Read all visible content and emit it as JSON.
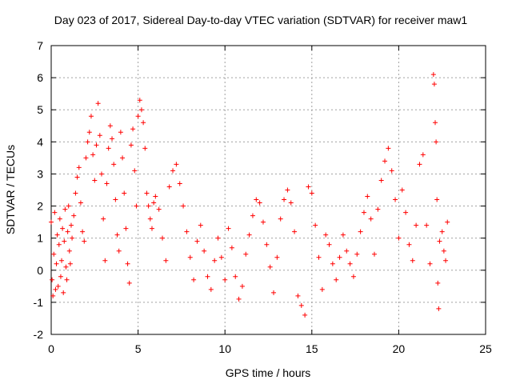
{
  "chart_data": {
    "type": "scatter",
    "title": "Day 023 of 2017, Sidereal Day-to-day VTEC variation (SDTVAR) for receiver maw1",
    "xlabel": "GPS time / hours",
    "ylabel": "SDTVAR / TECUs",
    "xlim": [
      0,
      25
    ],
    "ylim": [
      -2,
      7
    ],
    "xticks": [
      0,
      5,
      10,
      15,
      20,
      25
    ],
    "yticks": [
      -2,
      -1,
      0,
      1,
      2,
      3,
      4,
      5,
      6,
      7
    ],
    "grid": true,
    "marker": "+",
    "marker_color": "#ff0000",
    "series": [
      {
        "name": "SDTVAR",
        "points": [
          [
            0.0,
            1.5
          ],
          [
            0.05,
            -0.3
          ],
          [
            0.1,
            -0.8
          ],
          [
            0.15,
            0.5
          ],
          [
            0.2,
            1.8
          ],
          [
            0.25,
            -0.6
          ],
          [
            0.3,
            0.2
          ],
          [
            0.35,
            1.1
          ],
          [
            0.4,
            -0.5
          ],
          [
            0.45,
            0.8
          ],
          [
            0.5,
            1.6
          ],
          [
            0.55,
            -0.2
          ],
          [
            0.6,
            0.3
          ],
          [
            0.65,
            1.3
          ],
          [
            0.7,
            -0.7
          ],
          [
            0.75,
            0.9
          ],
          [
            0.8,
            1.9
          ],
          [
            0.85,
            0.1
          ],
          [
            0.9,
            -0.3
          ],
          [
            0.95,
            1.2
          ],
          [
            1.0,
            2.0
          ],
          [
            1.05,
            0.6
          ],
          [
            1.1,
            0.2
          ],
          [
            1.15,
            1.4
          ],
          [
            1.2,
            1.0
          ],
          [
            1.3,
            1.7
          ],
          [
            1.4,
            2.4
          ],
          [
            1.5,
            2.9
          ],
          [
            1.6,
            3.2
          ],
          [
            1.7,
            2.1
          ],
          [
            1.8,
            1.2
          ],
          [
            1.9,
            0.9
          ],
          [
            2.0,
            3.5
          ],
          [
            2.1,
            4.0
          ],
          [
            2.2,
            4.3
          ],
          [
            2.3,
            4.8
          ],
          [
            2.4,
            3.6
          ],
          [
            2.5,
            2.8
          ],
          [
            2.6,
            3.9
          ],
          [
            2.7,
            5.2
          ],
          [
            2.8,
            4.2
          ],
          [
            2.9,
            3.0
          ],
          [
            3.0,
            1.6
          ],
          [
            3.1,
            0.3
          ],
          [
            3.2,
            2.7
          ],
          [
            3.3,
            3.8
          ],
          [
            3.4,
            4.5
          ],
          [
            3.5,
            4.1
          ],
          [
            3.6,
            3.3
          ],
          [
            3.7,
            2.2
          ],
          [
            3.8,
            1.1
          ],
          [
            3.9,
            0.6
          ],
          [
            4.0,
            4.3
          ],
          [
            4.1,
            3.5
          ],
          [
            4.2,
            2.4
          ],
          [
            4.3,
            1.3
          ],
          [
            4.4,
            0.2
          ],
          [
            4.5,
            -0.4
          ],
          [
            4.6,
            3.9
          ],
          [
            4.7,
            4.4
          ],
          [
            4.8,
            3.1
          ],
          [
            4.9,
            2.0
          ],
          [
            5.0,
            4.8
          ],
          [
            5.1,
            5.3
          ],
          [
            5.2,
            5.0
          ],
          [
            5.3,
            4.6
          ],
          [
            5.4,
            3.8
          ],
          [
            5.5,
            2.4
          ],
          [
            5.6,
            2.0
          ],
          [
            5.7,
            1.6
          ],
          [
            5.8,
            1.3
          ],
          [
            5.9,
            2.1
          ],
          [
            6.0,
            2.3
          ],
          [
            6.2,
            1.9
          ],
          [
            6.4,
            1.0
          ],
          [
            6.6,
            0.3
          ],
          [
            6.8,
            2.6
          ],
          [
            7.0,
            3.1
          ],
          [
            7.2,
            3.3
          ],
          [
            7.4,
            2.7
          ],
          [
            7.6,
            2.0
          ],
          [
            7.8,
            1.2
          ],
          [
            8.0,
            0.4
          ],
          [
            8.2,
            -0.3
          ],
          [
            8.4,
            0.9
          ],
          [
            8.6,
            1.4
          ],
          [
            8.8,
            0.6
          ],
          [
            9.0,
            -0.2
          ],
          [
            9.2,
            -0.6
          ],
          [
            9.4,
            0.3
          ],
          [
            9.6,
            1.0
          ],
          [
            9.8,
            0.4
          ],
          [
            10.0,
            -0.3
          ],
          [
            10.2,
            1.3
          ],
          [
            10.4,
            0.7
          ],
          [
            10.6,
            -0.2
          ],
          [
            10.8,
            -0.9
          ],
          [
            11.0,
            -0.5
          ],
          [
            11.2,
            0.5
          ],
          [
            11.4,
            1.1
          ],
          [
            11.6,
            1.7
          ],
          [
            11.8,
            2.2
          ],
          [
            12.0,
            2.1
          ],
          [
            12.2,
            1.5
          ],
          [
            12.4,
            0.8
          ],
          [
            12.6,
            0.1
          ],
          [
            12.8,
            -0.7
          ],
          [
            13.0,
            0.4
          ],
          [
            13.2,
            1.6
          ],
          [
            13.4,
            2.2
          ],
          [
            13.6,
            2.5
          ],
          [
            13.8,
            2.1
          ],
          [
            14.0,
            1.2
          ],
          [
            14.2,
            -0.8
          ],
          [
            14.4,
            -1.1
          ],
          [
            14.6,
            -1.4
          ],
          [
            14.8,
            2.6
          ],
          [
            15.0,
            2.4
          ],
          [
            15.2,
            1.4
          ],
          [
            15.4,
            0.4
          ],
          [
            15.6,
            -0.6
          ],
          [
            15.8,
            1.1
          ],
          [
            16.0,
            0.8
          ],
          [
            16.2,
            0.2
          ],
          [
            16.4,
            -0.3
          ],
          [
            16.6,
            0.4
          ],
          [
            16.8,
            1.1
          ],
          [
            17.0,
            0.6
          ],
          [
            17.2,
            0.2
          ],
          [
            17.4,
            -0.2
          ],
          [
            17.6,
            0.5
          ],
          [
            17.8,
            1.2
          ],
          [
            18.0,
            1.8
          ],
          [
            18.2,
            2.3
          ],
          [
            18.4,
            1.6
          ],
          [
            18.6,
            0.5
          ],
          [
            18.8,
            1.9
          ],
          [
            19.0,
            2.8
          ],
          [
            19.2,
            3.4
          ],
          [
            19.4,
            3.8
          ],
          [
            19.6,
            3.1
          ],
          [
            19.8,
            2.2
          ],
          [
            20.0,
            1.0
          ],
          [
            20.2,
            2.5
          ],
          [
            20.4,
            1.8
          ],
          [
            20.6,
            0.8
          ],
          [
            20.8,
            0.3
          ],
          [
            21.0,
            1.4
          ],
          [
            21.2,
            3.3
          ],
          [
            21.4,
            3.6
          ],
          [
            21.6,
            1.4
          ],
          [
            21.8,
            0.2
          ],
          [
            22.0,
            6.1
          ],
          [
            22.05,
            5.8
          ],
          [
            22.1,
            4.6
          ],
          [
            22.15,
            4.0
          ],
          [
            22.2,
            2.2
          ],
          [
            22.25,
            -0.4
          ],
          [
            22.3,
            -1.2
          ],
          [
            22.35,
            0.9
          ],
          [
            22.5,
            1.2
          ],
          [
            22.6,
            0.6
          ],
          [
            22.7,
            0.3
          ],
          [
            22.8,
            1.5
          ]
        ]
      }
    ]
  }
}
